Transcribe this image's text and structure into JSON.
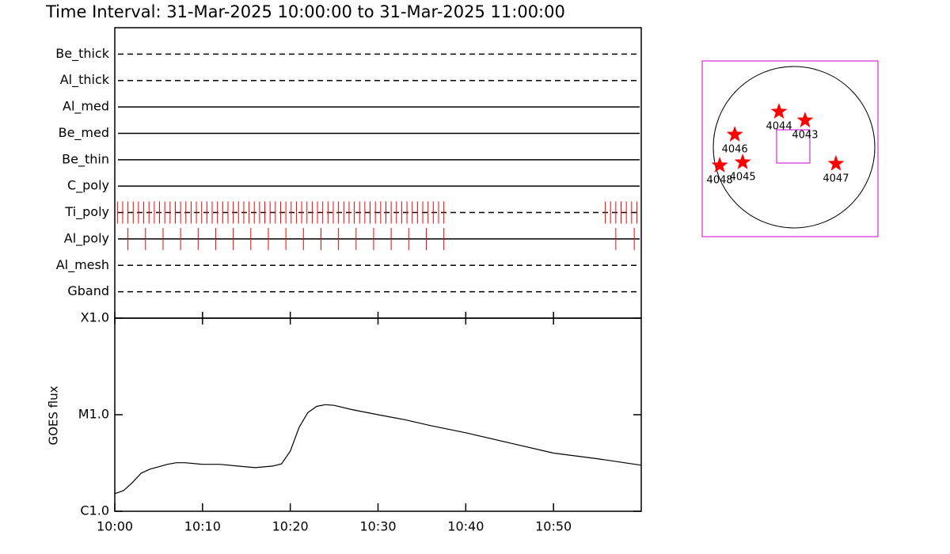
{
  "chart_data": [
    {
      "type": "timeline",
      "title": "Time Interval: 31-Mar-2025 10:00:00 to 31-Mar-2025 11:00:00",
      "categories": [
        "Be_thick",
        "Al_thick",
        "Al_med",
        "Be_med",
        "Be_thin",
        "C_poly",
        "Ti_poly",
        "Al_poly",
        "Al_mesh",
        "Gband"
      ],
      "line_styles": [
        "dashed",
        "dashed",
        "solid",
        "solid",
        "solid",
        "solid",
        "dashed",
        "solid",
        "dashed",
        "dashed"
      ],
      "color": "#ff0000",
      "xlim": [
        0,
        60
      ],
      "events": [
        [],
        [],
        [],
        [],
        [],
        [],
        [
          0.3,
          0.9,
          1.5,
          2.1,
          2.7,
          3.3,
          3.9,
          4.5,
          5.1,
          5.7,
          6.3,
          6.9,
          7.5,
          8.1,
          8.7,
          9.3,
          9.9,
          10.5,
          11.1,
          11.7,
          12.3,
          12.9,
          13.5,
          14.1,
          14.7,
          15.3,
          15.9,
          16.5,
          17.1,
          17.7,
          18.3,
          18.9,
          19.5,
          20.1,
          20.7,
          21.3,
          21.9,
          22.5,
          23.1,
          23.7,
          24.3,
          24.9,
          25.5,
          26.1,
          26.7,
          27.3,
          27.9,
          28.5,
          29.1,
          29.7,
          30.3,
          30.9,
          31.5,
          32.1,
          32.7,
          33.3,
          33.9,
          34.5,
          35.1,
          35.7,
          36.3,
          36.9,
          37.5,
          55.9,
          56.5,
          57.1,
          57.7,
          58.3,
          58.9,
          59.5
        ],
        [
          1.5,
          3.5,
          5.5,
          7.5,
          9.5,
          11.5,
          13.5,
          15.5,
          17.5,
          19.5,
          21.5,
          23.5,
          25.5,
          27.5,
          29.5,
          31.5,
          33.5,
          35.5,
          37.5,
          57.1,
          59.2
        ],
        [],
        []
      ]
    },
    {
      "type": "line",
      "ylabel": "GOES flux",
      "log_y": true,
      "color": "#000000",
      "x": [
        0,
        1,
        2,
        3,
        4,
        5,
        6,
        7,
        8,
        10,
        12,
        14,
        16,
        18,
        19,
        20,
        21,
        22,
        23,
        24,
        25,
        27,
        30,
        33,
        36,
        40,
        45,
        50,
        55,
        60
      ],
      "values": [
        1.52e-06,
        1.64e-06,
        1.98e-06,
        2.48e-06,
        2.73e-06,
        2.89e-06,
        3.06e-06,
        3.18e-06,
        3.18e-06,
        3.06e-06,
        3.06e-06,
        2.94e-06,
        2.83e-06,
        2.94e-06,
        3.1e-06,
        4.2e-06,
        7.4e-06,
        1.05e-05,
        1.22e-05,
        1.27e-05,
        1.25e-05,
        1.13e-05,
        1e-05,
        8.9e-06,
        7.7e-06,
        6.5e-06,
        5.1e-06,
        4e-06,
        3.5e-06,
        3e-06
      ],
      "xlim": [
        0,
        60
      ],
      "xticks": [
        {
          "value": 0,
          "label": "10:00"
        },
        {
          "value": 10,
          "label": "10:10"
        },
        {
          "value": 20,
          "label": "10:20"
        },
        {
          "value": 30,
          "label": "10:30"
        },
        {
          "value": 40,
          "label": "10:40"
        },
        {
          "value": 50,
          "label": "10:50"
        }
      ],
      "ylim": [
        1e-06,
        0.0001
      ],
      "yticks": [
        {
          "value": 1e-06,
          "label": "C1.0"
        },
        {
          "value": 1e-05,
          "label": "M1.0"
        },
        {
          "value": 0.0001,
          "label": "X1.0"
        }
      ]
    },
    {
      "type": "map",
      "color": "#ff0000",
      "frame_color": "#cc00cc",
      "labels": [
        "4044",
        "4043",
        "4046",
        "4045",
        "4048",
        "4047"
      ],
      "x": [
        -0.137,
        0.186,
        -0.686,
        -0.588,
        -0.873,
        0.569
      ],
      "values": [
        0.461,
        0.353,
        0.176,
        -0.167,
        -0.206,
        -0.186
      ],
      "xlim": [
        -1.09,
        1.09
      ],
      "ylim": [
        -1.09,
        1.09
      ]
    }
  ]
}
